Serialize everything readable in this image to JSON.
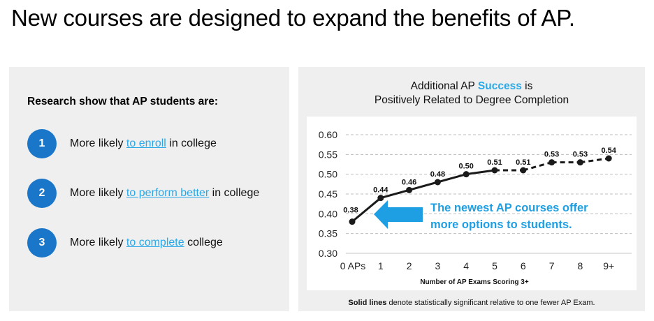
{
  "headline": "New courses are designed to expand the benefits of AP.",
  "left_panel": {
    "heading": "Research show that AP students are:",
    "items": [
      {
        "number": "1",
        "prefix": "More likely ",
        "link": "to enroll",
        "suffix": " in college"
      },
      {
        "number": "2",
        "prefix": "More likely ",
        "link": "to perform better",
        "suffix": " in college"
      },
      {
        "number": "3",
        "prefix": "More likely ",
        "link": "to complete",
        "suffix": " college"
      }
    ]
  },
  "right_panel": {
    "title_part1": "Additional AP ",
    "title_highlight": "Success",
    "title_part2": " is",
    "title_line2": "Positively Related to Degree Completion",
    "footnote_bold": "Solid lines",
    "footnote_rest": " denote statistically significant relative to one fewer AP Exam."
  },
  "colors": {
    "circle": "#1a76c9",
    "link": "#29a8e8",
    "arrow": "#1e9fe3",
    "line": "#1a1a1a"
  },
  "chart_data": {
    "type": "line",
    "title": "Additional AP Success is Positively Related to Degree Completion",
    "xlabel": "Number of AP Exams Scoring 3+",
    "ylabel": "",
    "categories": [
      "0 APs",
      "1",
      "2",
      "3",
      "4",
      "5",
      "6",
      "7",
      "8",
      "9+"
    ],
    "values": [
      0.38,
      0.44,
      0.46,
      0.48,
      0.5,
      0.51,
      0.51,
      0.53,
      0.53,
      0.54
    ],
    "data_labels": [
      "0.38",
      "0.44",
      "0.46",
      "0.48",
      "0.50",
      "0.51",
      "0.51",
      "0.53",
      "0.53",
      "0.54"
    ],
    "solid_segments_through_index": 5,
    "ylim": [
      0.3,
      0.6
    ],
    "yticks": [
      "0.30",
      "0.35",
      "0.40",
      "0.45",
      "0.50",
      "0.55",
      "0.60"
    ],
    "ytick_values": [
      0.3,
      0.35,
      0.4,
      0.45,
      0.5,
      0.55,
      0.6
    ],
    "grid": true,
    "annotation": {
      "line1": "The newest AP courses offer",
      "line2": "more options to students."
    }
  }
}
